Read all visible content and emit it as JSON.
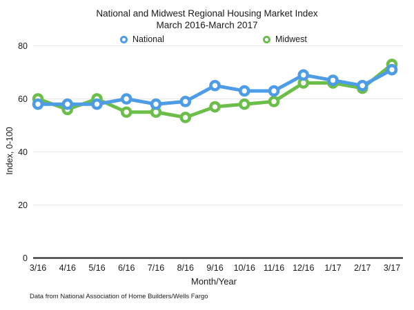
{
  "chart_data": {
    "type": "line",
    "title": "National and Midwest Regional Housing Market Index",
    "subtitle": "March 2016-March 2017",
    "categories": [
      "3/16",
      "4/16",
      "5/16",
      "6/16",
      "7/16",
      "8/16",
      "9/16",
      "10/16",
      "11/16",
      "12/16",
      "1/17",
      "2/17",
      "3/17"
    ],
    "series": [
      {
        "name": "National",
        "color": "#4D9CE5",
        "marker": "donut-circle",
        "values": [
          58,
          58,
          58,
          60,
          58,
          59,
          65,
          63,
          63,
          69,
          67,
          65,
          71
        ]
      },
      {
        "name": "Midwest",
        "color": "#6CBE4B",
        "marker": "donut-circle",
        "values": [
          60,
          56,
          60,
          55,
          55,
          53,
          57,
          58,
          59,
          66,
          66,
          64,
          73
        ]
      }
    ],
    "xlabel": "Month/Year",
    "ylabel": "Index, 0-100",
    "y_ticks": [
      0,
      20,
      40,
      60,
      80
    ],
    "ylim": [
      0,
      80
    ],
    "grid": true,
    "legend_position": "top",
    "gridline_color": "#e7e7e7",
    "axis_color": "#3f3f3f",
    "footnote": "Data from National Association of Home Builders/Wells Fargo"
  }
}
